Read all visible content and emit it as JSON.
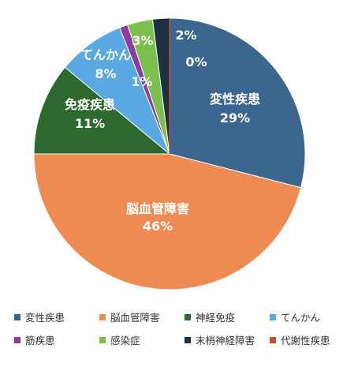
{
  "chart_data": {
    "type": "pie",
    "title": "",
    "slices": [
      {
        "name": "変性疾患",
        "value": 29,
        "label": "29%",
        "color": "#3a6690"
      },
      {
        "name": "脳血管障害",
        "value": 46,
        "label": "46%",
        "color": "#ee8b52"
      },
      {
        "name": "神経免疫",
        "value": 11,
        "label": "11%",
        "color": "#2e6a30",
        "callout": "免疫疾患"
      },
      {
        "name": "てんかん",
        "value": 8,
        "label": "8%",
        "color": "#5aa9e3"
      },
      {
        "name": "筋疾患",
        "value": 1,
        "label": "1%",
        "color": "#8e3aa3"
      },
      {
        "name": "感染症",
        "value": 3,
        "label": "3%",
        "color": "#7bc04f"
      },
      {
        "name": "末梢神経障害",
        "value": 2,
        "label": "2%",
        "color": "#1f3040"
      },
      {
        "name": "代謝性疾患",
        "value": 0,
        "label": "0%",
        "color": "#c1502e"
      }
    ],
    "legend_position": "bottom"
  }
}
